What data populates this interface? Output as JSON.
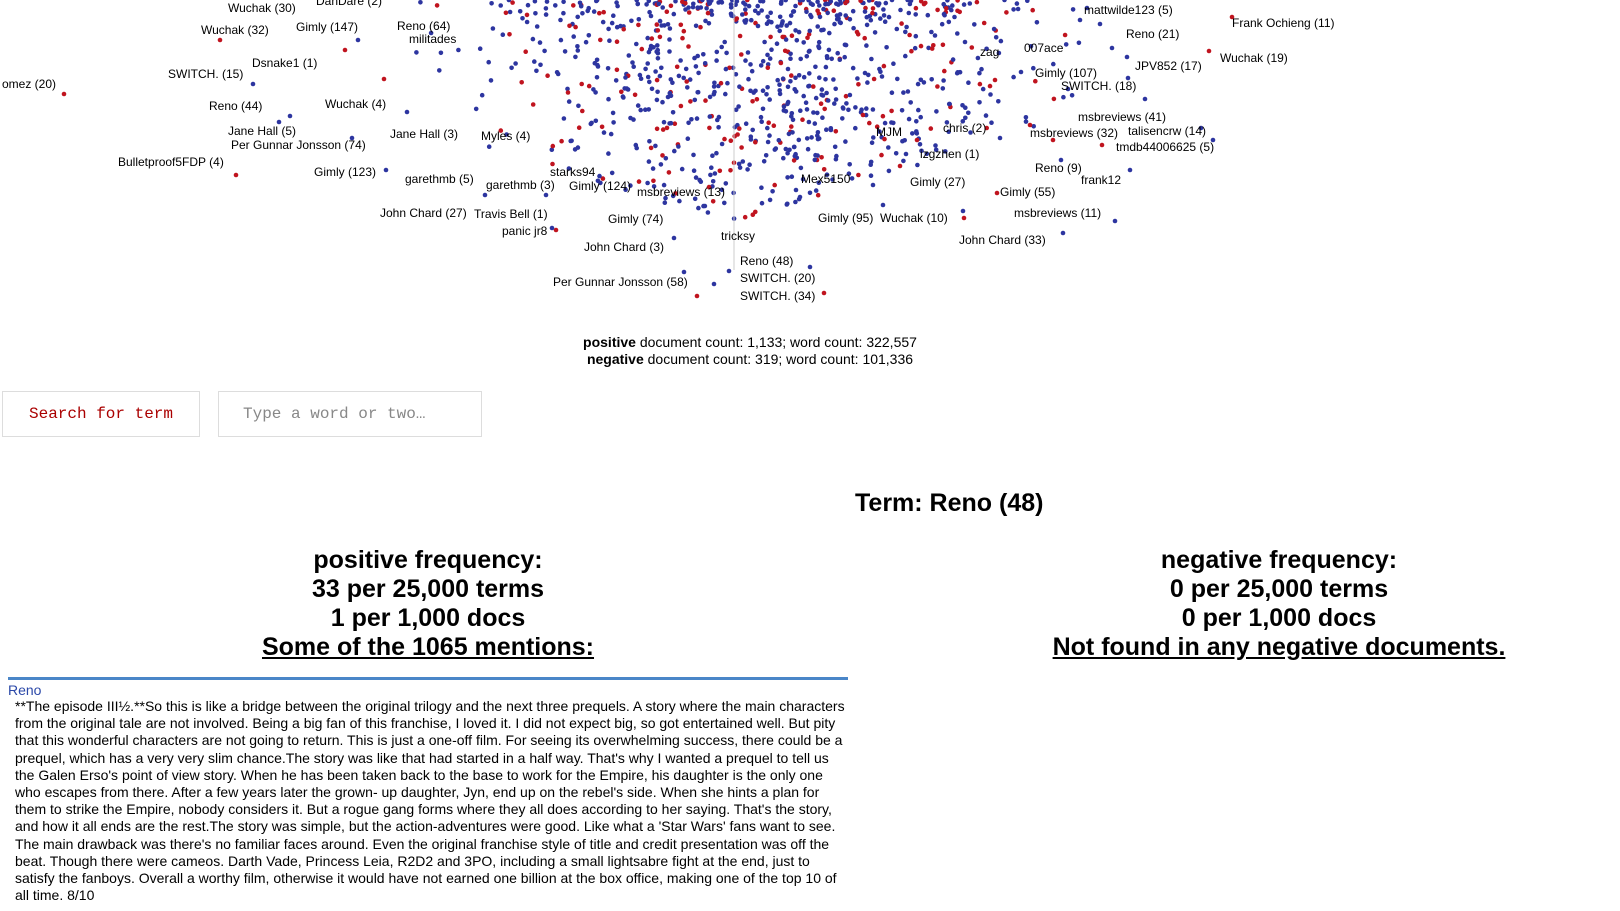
{
  "scatter": {
    "colors": {
      "positive": "#2d35a0",
      "negative": "#c0141f"
    },
    "labels": [
      {
        "text": "Wuchak (30)"
      },
      {
        "text": "DanDare (2)"
      },
      {
        "text": "Wuchak (32)"
      },
      {
        "text": "Gimly (147)"
      },
      {
        "text": "Reno (64)"
      },
      {
        "text": "militades"
      },
      {
        "text": "omez (20)"
      },
      {
        "text": "SWITCH. (15)"
      },
      {
        "text": "Dsnake1 (1)"
      },
      {
        "text": "Reno (44)"
      },
      {
        "text": "Wuchak (4)"
      },
      {
        "text": "Jane Hall (5)"
      },
      {
        "text": "Per Gunnar Jonsson (74)"
      },
      {
        "text": "Jane Hall (3)"
      },
      {
        "text": "Myles (4)"
      },
      {
        "text": "Bulletproof5FDP (4)"
      },
      {
        "text": "Gimly (123)"
      },
      {
        "text": "garethmb (5)"
      },
      {
        "text": "garethmb (3)"
      },
      {
        "text": "starks94"
      },
      {
        "text": "Gimly (124)"
      },
      {
        "text": "msbreviews (13)"
      },
      {
        "text": "John Chard (27)"
      },
      {
        "text": "Travis Bell (1)"
      },
      {
        "text": "panic jr8"
      },
      {
        "text": "Gimly (74)"
      },
      {
        "text": "John Chard (3)"
      },
      {
        "text": "tricksy"
      },
      {
        "text": "Per Gunnar Jonsson (58)"
      },
      {
        "text": "Reno (48)"
      },
      {
        "text": "SWITCH. (20)"
      },
      {
        "text": "SWITCH. (34)"
      },
      {
        "text": "Mex5150"
      },
      {
        "text": "Gimly (95)"
      },
      {
        "text": "Wuchak (10)"
      },
      {
        "text": "MJM"
      },
      {
        "text": "chris (2)"
      },
      {
        "text": "izgzhen (1)"
      },
      {
        "text": "Gimly (27)"
      },
      {
        "text": "mattwilde123 (5)"
      },
      {
        "text": "Frank Ochieng (11)"
      },
      {
        "text": "Reno (21)"
      },
      {
        "text": "zag"
      },
      {
        "text": "007ace"
      },
      {
        "text": "JPV852 (17)"
      },
      {
        "text": "Wuchak (19)"
      },
      {
        "text": "Gimly (107)"
      },
      {
        "text": "SWITCH. (18)"
      },
      {
        "text": "msbreviews (41)"
      },
      {
        "text": "msbreviews (32)"
      },
      {
        "text": "talisencrw (14)"
      },
      {
        "text": "tmdb44006625 (5)"
      },
      {
        "text": "Reno (9)"
      },
      {
        "text": "frank12"
      },
      {
        "text": "Gimly (55)"
      },
      {
        "text": "msbreviews (11)"
      },
      {
        "text": "John Chard (33)"
      }
    ]
  },
  "counts": {
    "positive_label": "positive",
    "positive_text": " document count: 1,133; word count: 322,557",
    "negative_label": "negative",
    "negative_text": " document count: 319; word count: 101,336"
  },
  "search": {
    "button_label": "Search for term",
    "placeholder": "Type a word or two…"
  },
  "term": {
    "title": "Term: Reno (48)"
  },
  "positive": {
    "heading": "positive frequency:",
    "per_terms": "33 per 25,000 terms",
    "per_docs": "1 per 1,000 docs",
    "mentions": "Some of the 1065 mentions:"
  },
  "negative": {
    "heading": "negative frequency:",
    "per_terms": "0 per 25,000 terms",
    "per_docs": "0 per 1,000 docs",
    "mentions": "Not found in any negative documents."
  },
  "snippet": {
    "author": "Reno",
    "text": "**The episode III½.**So this is like a bridge between the original trilogy and the next three prequels. A story where the main characters from the original tale are not involved. Being a big fan of this franchise, I loved it. I did not expect big, so got entertained well. But pity that this wonderful characters are not going to return. This is just a one-off film. For seeing its overwhelming success, there could be a prequel, which has a very very slim chance.The story was like that had started in a half way. That's why I wanted a prequel to tell us the Galen Erso's point of view story. When he has been taken back to the base to work for the Empire, his daughter is the only one who escapes from there. After a few years later the grown- up daughter, Jyn, end up on the rebel's side. When she hints a plan for them to strike the Empire, nobody considers it. But a rogue gang forms where they all does according to her saying. That's the story, and how it all ends are the rest.The story was simple, but the action-adventures were good. Like what a 'Star Wars' fans want to see. The main drawback was there's no familiar faces around. Even the original franchise style of title and credit presentation was off the beat. Though there were cameos. Darth Vade, Princess Leia, R2D2 and 3PO, including a small lightsabre fight at the end, just to satisfy the fanboys. Overall a worthy film, otherwise it would have not earned one billion at the box office, making one of the top 10 of all time.  8/10"
  }
}
